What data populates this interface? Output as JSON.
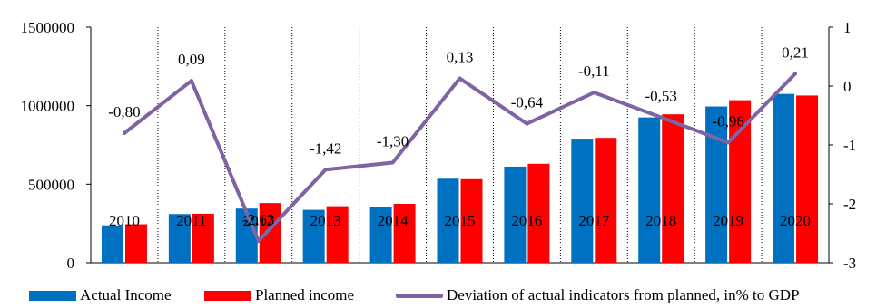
{
  "chart_data": {
    "type": "bar",
    "categories": [
      "2010",
      "2011",
      "2012",
      "2013",
      "2014",
      "2015",
      "2016",
      "2017",
      "2018",
      "2019",
      "2020"
    ],
    "series": [
      {
        "name": "Actual Income",
        "type": "bar",
        "axis": "left",
        "color": "#0070C0",
        "values": [
          238000,
          310000,
          345000,
          337000,
          355000,
          535000,
          612000,
          790000,
          925000,
          995000,
          1075000
        ]
      },
      {
        "name": "Planned income",
        "type": "bar",
        "axis": "left",
        "color": "#FF0000",
        "values": [
          245000,
          312000,
          380000,
          360000,
          375000,
          532000,
          630000,
          795000,
          945000,
          1035000,
          1065000
        ]
      },
      {
        "name": "Deviation of actual indicators from planned, in% to GDP",
        "type": "line",
        "axis": "right",
        "color": "#7F63A2",
        "values": [
          -0.8,
          0.09,
          -2.63,
          -1.42,
          -1.3,
          0.13,
          -0.64,
          -0.11,
          -0.53,
          -0.96,
          0.21
        ],
        "labels": [
          "-0,80",
          "0,09",
          "-2,63",
          "-1,42",
          "-1,30",
          "0,13",
          "-0,64",
          "-0,11",
          "-0,53",
          "-0,96",
          "0,21"
        ]
      }
    ],
    "y_left": {
      "min": 0,
      "max": 1500000,
      "ticks": [
        0,
        500000,
        1000000,
        1500000
      ],
      "tick_labels": [
        "0",
        "500000",
        "1000000",
        "1500000"
      ]
    },
    "y_right": {
      "min": -3,
      "max": 1,
      "ticks": [
        -3,
        -2,
        -1,
        0,
        1
      ],
      "tick_labels": [
        "-3",
        "-2",
        "-1",
        "0",
        "1"
      ]
    },
    "grid": "vertical",
    "legend": "bottom",
    "title": "",
    "xlabel": "",
    "ylabel": ""
  }
}
